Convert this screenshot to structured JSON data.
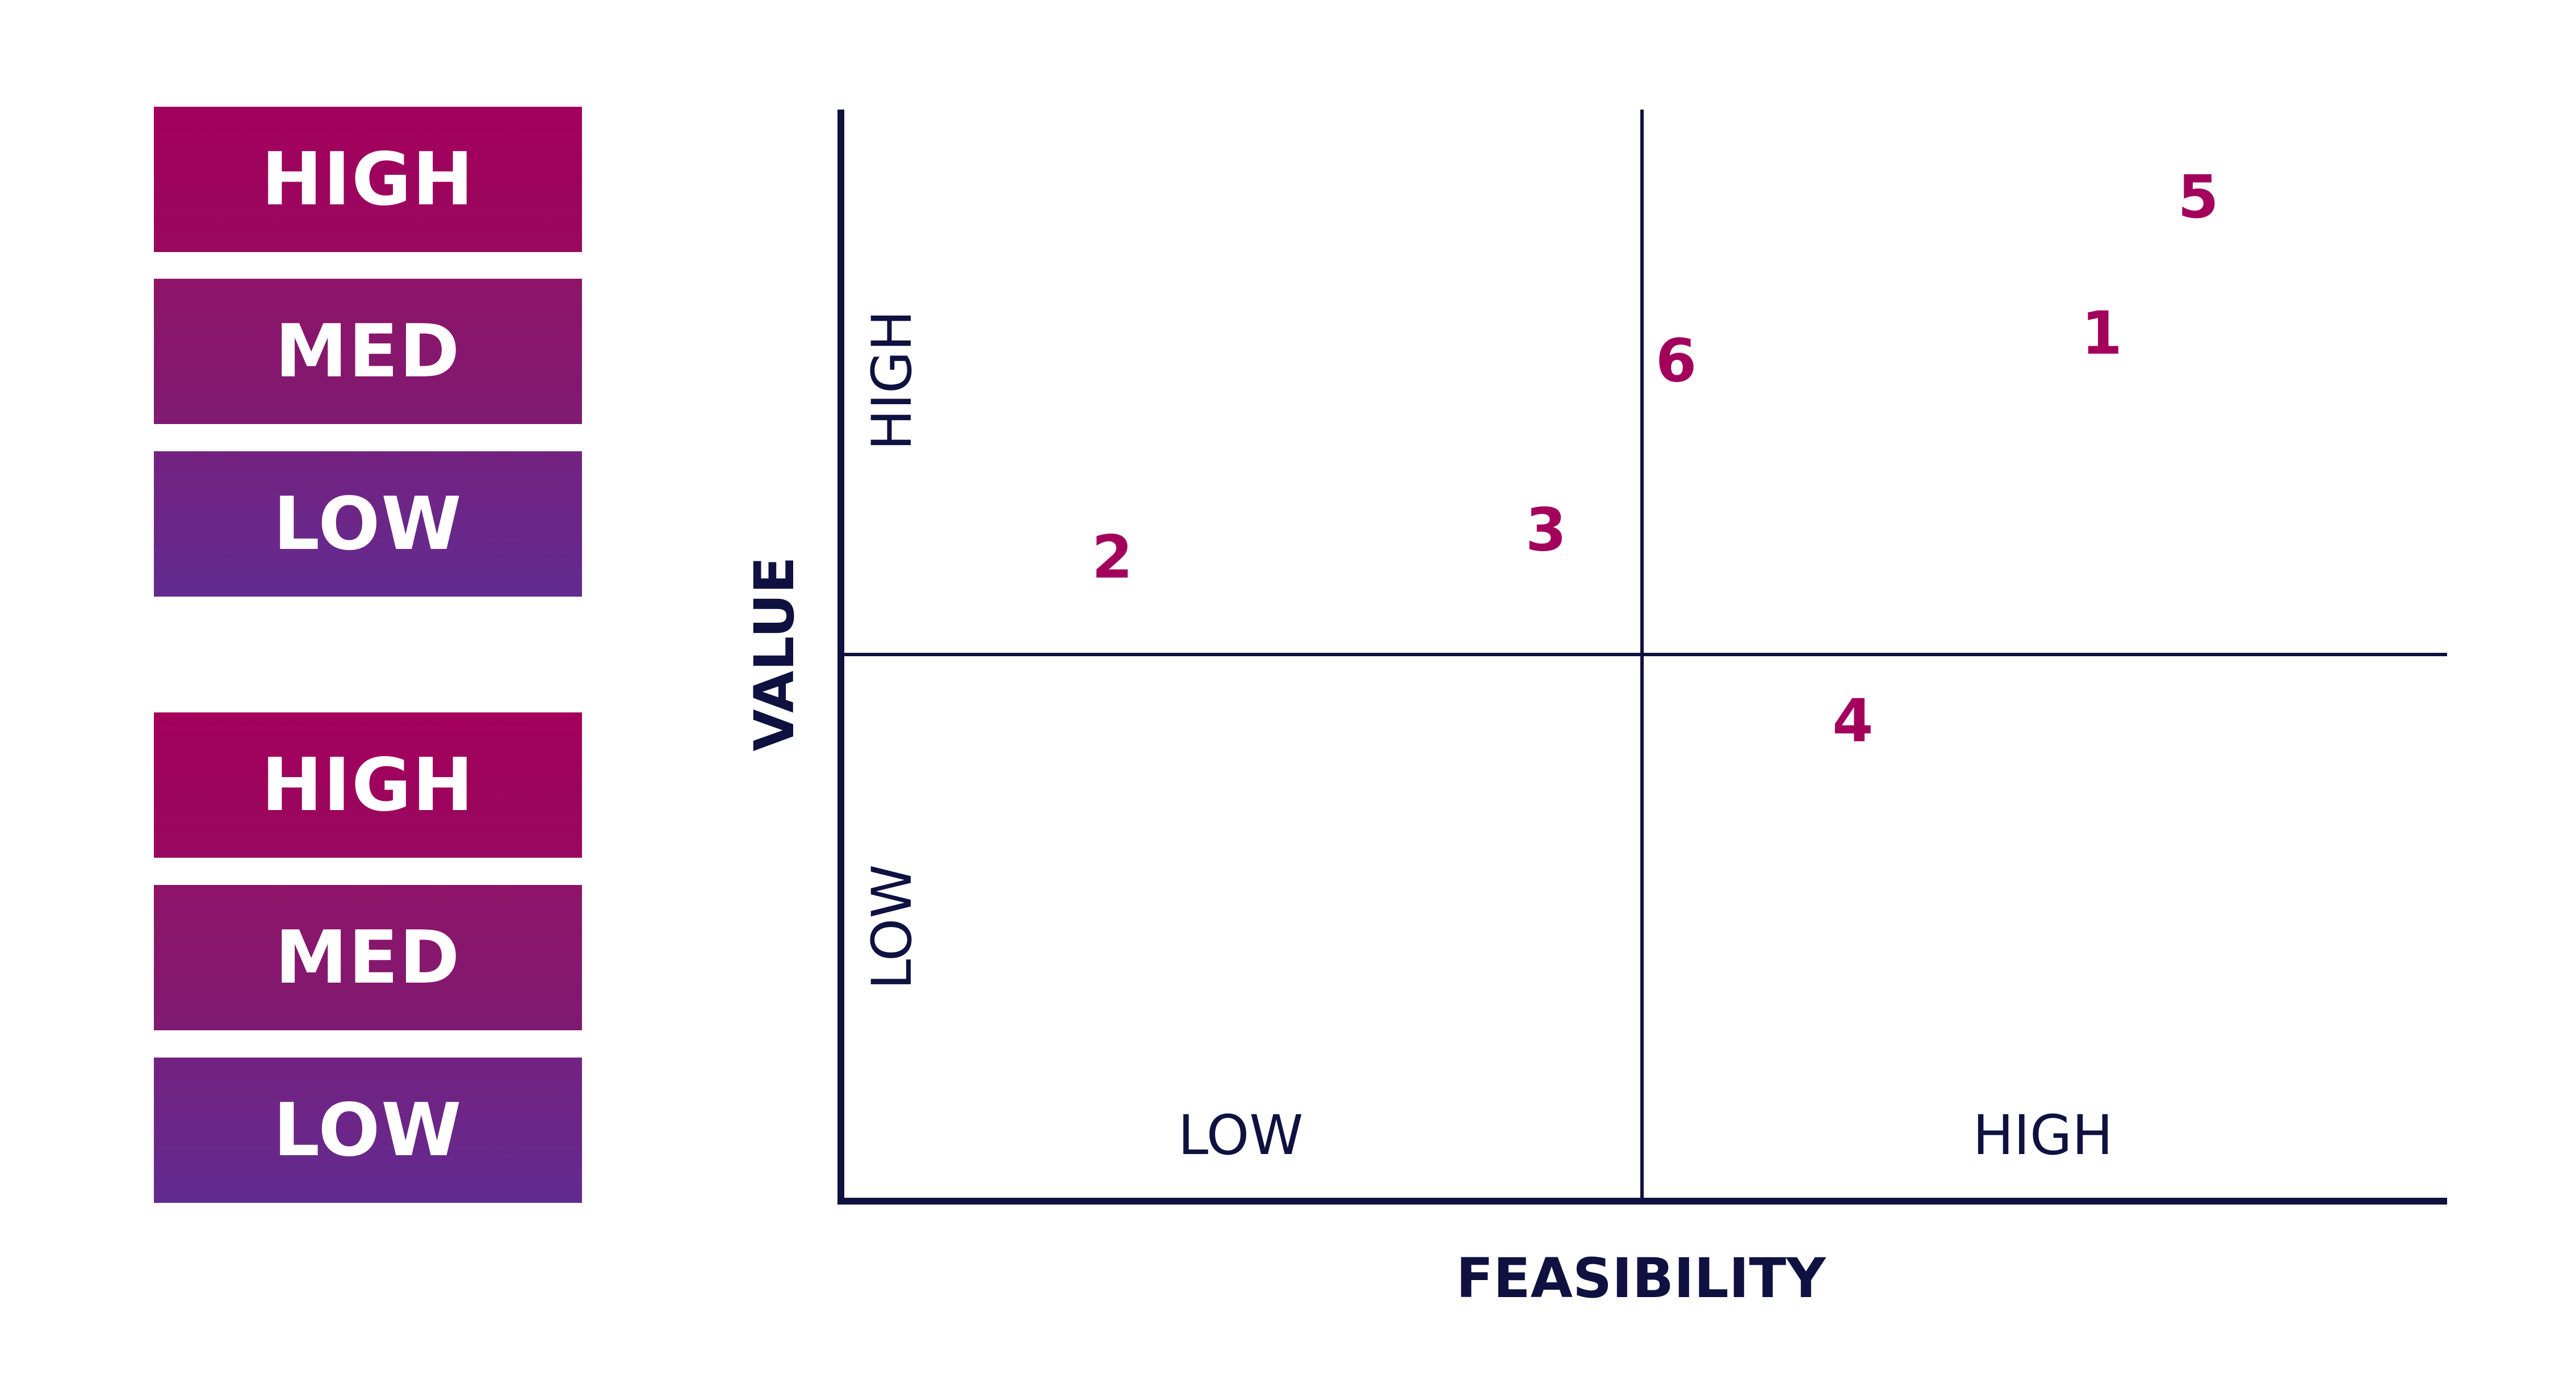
{
  "legend": {
    "groups": [
      {
        "items": [
          {
            "label": "HIGH",
            "level": "high"
          },
          {
            "label": "MED",
            "level": "med"
          },
          {
            "label": "LOW",
            "level": "low"
          }
        ]
      },
      {
        "items": [
          {
            "label": "HIGH",
            "level": "high"
          },
          {
            "label": "MED",
            "level": "med"
          },
          {
            "label": "LOW",
            "level": "low"
          }
        ]
      }
    ]
  },
  "matrix": {
    "y_axis_title": "VALUE",
    "x_axis_title": "FEASIBILITY",
    "y_high_label": "HIGH",
    "y_low_label": "LOW",
    "x_low_label": "LOW",
    "x_high_label": "HIGH"
  },
  "colors": {
    "axis": "#0f1140",
    "point": "#a3005c",
    "high": "#a3005c",
    "med": "#8a166c",
    "low": "#662b8f"
  },
  "chart_data": {
    "type": "scatter",
    "x_range": [
      0,
      100
    ],
    "y_range": [
      0,
      100
    ],
    "points": [
      {
        "label": "1",
        "x": 78.5,
        "y": 79.5
      },
      {
        "label": "2",
        "x": 16.9,
        "y": 59.0
      },
      {
        "label": "3",
        "x": 43.9,
        "y": 61.5
      },
      {
        "label": "4",
        "x": 63.0,
        "y": 44.0
      },
      {
        "label": "5",
        "x": 84.5,
        "y": 92.0
      },
      {
        "label": "6",
        "x": 52.0,
        "y": 77.0
      }
    ]
  }
}
